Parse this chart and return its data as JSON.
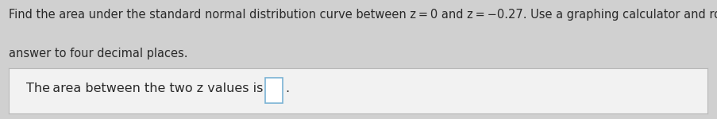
{
  "bg_color": "#d0d0d0",
  "box_color": "#f2f2f2",
  "box_border_color": "#b8b8b8",
  "main_text_line1": "Find the area under the standard normal distribution curve between z = 0 and z = −0.27. Use a graphing calculator and round the",
  "main_text_line2": "answer to four decimal places.",
  "answer_text": "The area between the two z values is",
  "period": ".",
  "input_box_color": "#ffffff",
  "input_box_border": "#7ab3d4",
  "font_size_main": 10.5,
  "font_size_answer": 11.5,
  "text_color": "#2a2a2a"
}
